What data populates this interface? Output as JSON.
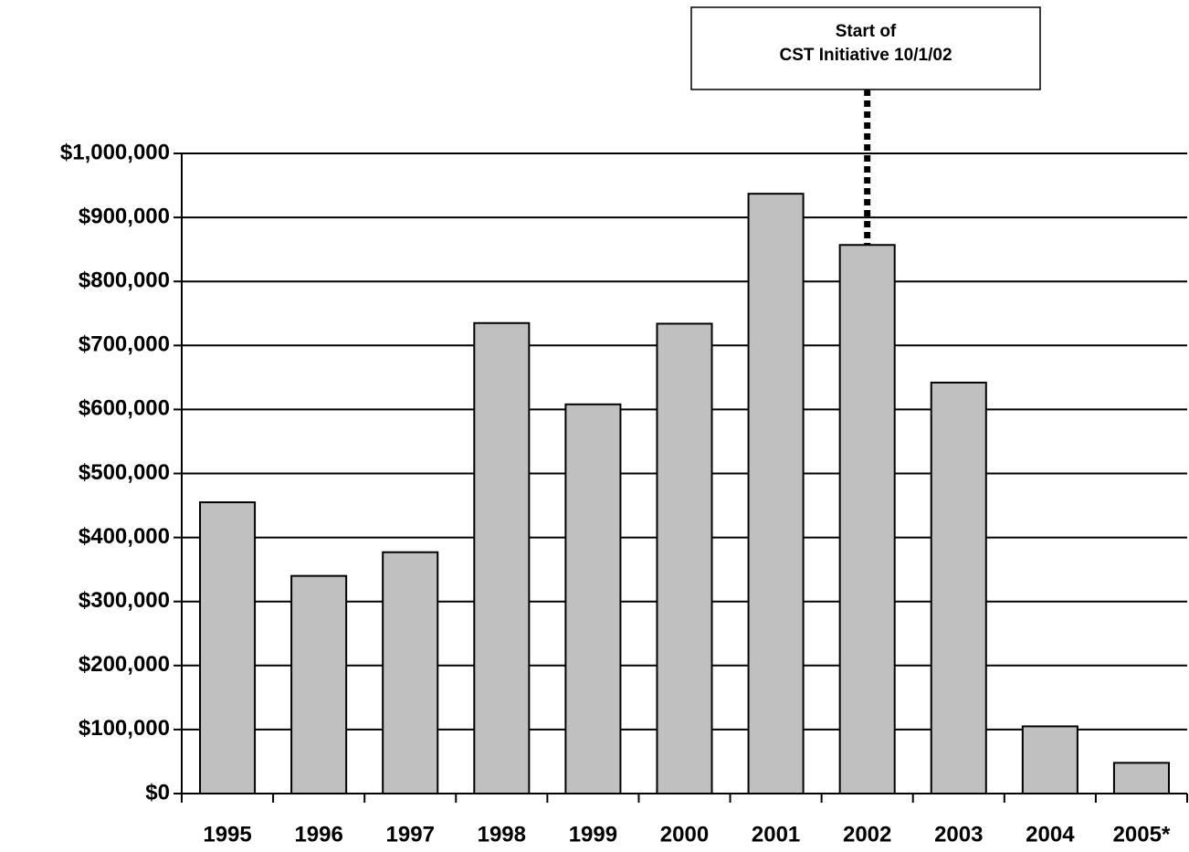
{
  "chart_data": {
    "type": "bar",
    "categories": [
      "1995",
      "1996",
      "1997",
      "1998",
      "1999",
      "2000",
      "2001",
      "2002",
      "2003",
      "2004",
      "2005*"
    ],
    "values": [
      455000,
      340000,
      377000,
      735000,
      608000,
      734000,
      937000,
      857000,
      642000,
      105000,
      48000
    ],
    "color": "#c0c0c0",
    "ylim": [
      0,
      1000000
    ],
    "yticks": [
      {
        "value": 0,
        "label": "$0"
      },
      {
        "value": 100000,
        "label": "$100,000"
      },
      {
        "value": 200000,
        "label": "$200,000"
      },
      {
        "value": 300000,
        "label": "$300,000"
      },
      {
        "value": 400000,
        "label": "$400,000"
      },
      {
        "value": 500000,
        "label": "$500,000"
      },
      {
        "value": 600000,
        "label": "$600,000"
      },
      {
        "value": 700000,
        "label": "$700,000"
      },
      {
        "value": 800000,
        "label": "$800,000"
      },
      {
        "value": 900000,
        "label": "$900,000"
      },
      {
        "value": 1000000,
        "label": "$1,000,000"
      }
    ],
    "grid": true,
    "annotation": {
      "text": [
        "Start of",
        "CST Initiative 10/1/02"
      ],
      "category": "2002"
    }
  }
}
